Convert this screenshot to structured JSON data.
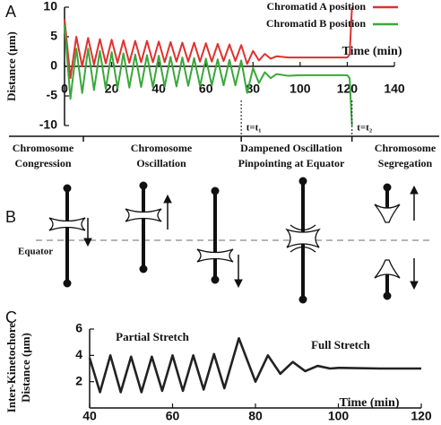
{
  "chart_data": [
    {
      "type": "line",
      "panel_label": "A",
      "ylabel": "Distance (μm)",
      "xlabel": "Time (min)",
      "x": [
        0,
        2.5,
        5,
        7.5,
        10,
        12.5,
        15,
        17.5,
        20,
        22.5,
        25,
        27.5,
        30,
        32.5,
        35,
        37.5,
        40,
        42.5,
        45,
        47.5,
        50,
        52.5,
        55,
        57.5,
        60,
        62.5,
        65,
        67.5,
        70,
        72.5,
        75,
        77.5,
        80,
        82.5,
        85,
        87.5,
        90,
        95,
        100,
        110,
        120,
        121,
        122
      ],
      "series": [
        {
          "name": "Chromatid A position",
          "color": "#e0312f",
          "values": [
            8,
            -2,
            5,
            0,
            4.8,
            0.3,
            4.6,
            0.5,
            4.5,
            0.6,
            4.4,
            0.6,
            4.3,
            0.7,
            4.3,
            0.7,
            4.2,
            0.7,
            4.1,
            0.8,
            4,
            0.8,
            4,
            0.8,
            3.9,
            0.8,
            3.8,
            0.9,
            3.7,
            0.9,
            3.6,
            0.4,
            2.6,
            1,
            2.1,
            1.3,
            1.7,
            1.5,
            1.5,
            1.5,
            1.5,
            2,
            10
          ]
        },
        {
          "name": "Chromatid B position",
          "color": "#3aa83a",
          "values": [
            7,
            -5.5,
            3,
            -4.5,
            3,
            -4,
            2.6,
            -3.8,
            2.4,
            -3.7,
            2.2,
            -3.6,
            2,
            -3.5,
            1.9,
            -3.5,
            1.8,
            -3.4,
            1.6,
            -3.4,
            1.5,
            -3.3,
            1.4,
            -3.3,
            1.3,
            -3.2,
            1.2,
            -3.2,
            1.1,
            -3.2,
            1,
            -4.5,
            -0.3,
            -2.8,
            -1,
            -2,
            -1.3,
            -1.6,
            -1.5,
            -1.5,
            -1.5,
            -2,
            -10
          ]
        }
      ],
      "xlim": [
        0,
        140
      ],
      "ylim": [
        -10,
        10
      ],
      "xticks": [
        0,
        20,
        40,
        60,
        80,
        100,
        120,
        140
      ],
      "yticks": [
        10,
        5,
        0,
        -5,
        -10
      ],
      "legend": "upper right",
      "annotations": [
        {
          "text": "t=t₁",
          "x": 75
        },
        {
          "text": "t=t₂",
          "x": 122
        }
      ],
      "phase_ticks": [
        8,
        75,
        122
      ],
      "phases": [
        [
          "Chromosome",
          "Congression"
        ],
        [
          "Chromosome",
          "Oscillation"
        ],
        [
          "Dampened Oscillation",
          "Pinpointing at Equator"
        ],
        [
          "Chromosome",
          "Segregation"
        ]
      ]
    },
    {
      "type": "line",
      "panel_label": "C",
      "ylabel": [
        "Inter-Kinetochore",
        "Distance (μm)"
      ],
      "xlabel": "Time (min)",
      "x": [
        40,
        42.5,
        45,
        47.5,
        50,
        52.5,
        55,
        57.5,
        60,
        62.5,
        65,
        67.5,
        70,
        72.5,
        76,
        80,
        83,
        86,
        89,
        92,
        95,
        98,
        100,
        110,
        120
      ],
      "series": [
        {
          "color": "#222222",
          "values": [
            3.8,
            1.2,
            4,
            1.2,
            3.9,
            1.2,
            3.9,
            1.3,
            4,
            1.3,
            4,
            1.4,
            4.1,
            1.5,
            5.3,
            2,
            4,
            2.6,
            3.5,
            2.8,
            3.2,
            3,
            3.05,
            3,
            3
          ]
        }
      ],
      "xlim": [
        40,
        120
      ],
      "ylim": [
        0,
        6
      ],
      "xticks": [
        40,
        60,
        80,
        100,
        120
      ],
      "yticks": [
        2,
        4,
        6
      ],
      "annotations": [
        "Partial Stretch",
        "Full Stretch"
      ]
    }
  ],
  "diagram": {
    "panel_label": "B",
    "equator_label": "Equator"
  }
}
